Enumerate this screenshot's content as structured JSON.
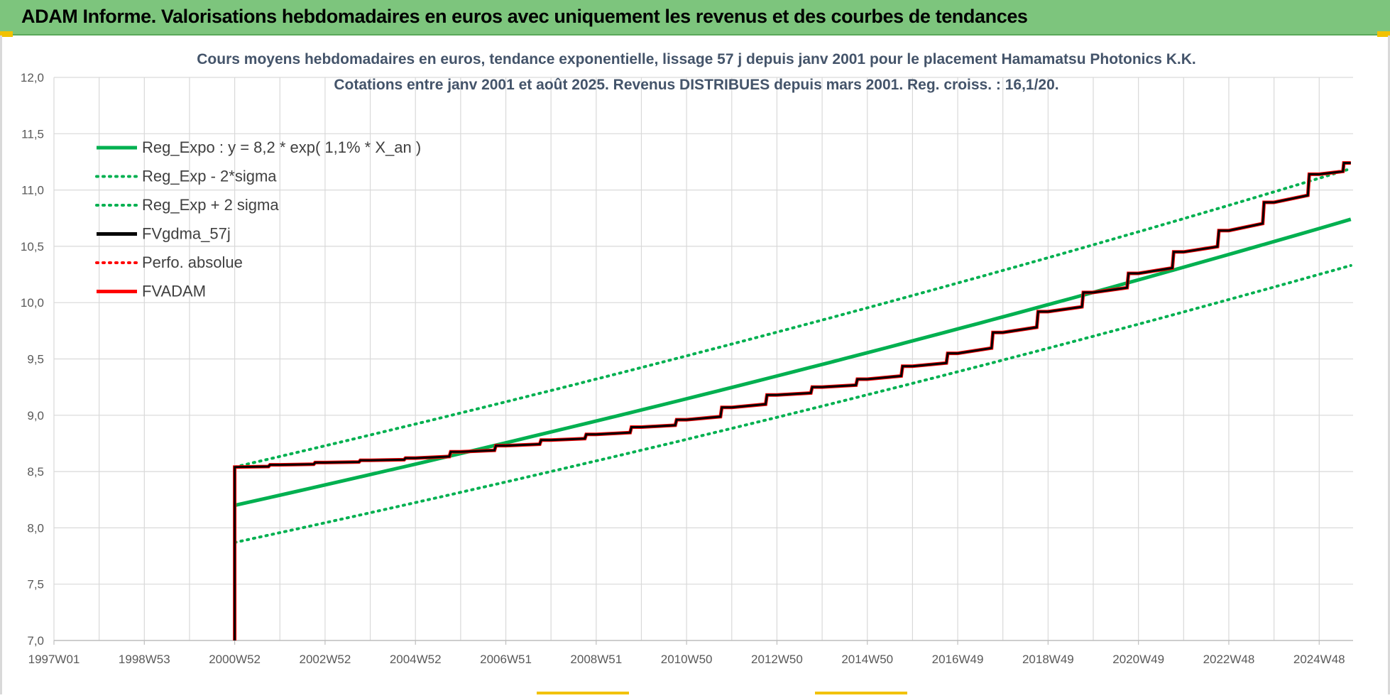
{
  "header": {
    "title": "ADAM Informe. Valorisations hebdomadaires en euros avec uniquement les revenus et des courbes de tendances"
  },
  "chart_data": {
    "type": "line",
    "title_line1": "Cours moyens hebdomadaires en euros, tendance exponentielle, lissage 57 j depuis janv 2001 pour le placement Hamamatsu Photonics K.K.",
    "title_line2": "Cotations entre janv 2001 et août 2025.  Revenus DISTRIBUES depuis mars 2001. Reg. croiss. : 16,1/20.",
    "xlabel": "",
    "ylabel": "",
    "ylim": [
      7.0,
      12.0
    ],
    "y_ticks": [
      "7,0",
      "7,5",
      "8,0",
      "8,5",
      "9,0",
      "9,5",
      "10,0",
      "10,5",
      "11,0",
      "11,5",
      "12,0"
    ],
    "x_ticks": [
      "1997W01",
      "1998W53",
      "2000W52",
      "2002W52",
      "2004W52",
      "2006W51",
      "2008W51",
      "2010W50",
      "2012W50",
      "2014W50",
      "2016W49",
      "2018W49",
      "2020W49",
      "2022W48",
      "2024W48"
    ],
    "x_tick_years": [
      1997.0,
      1999.0,
      2001.0,
      2003.0,
      2005.0,
      2007.0,
      2009.0,
      2011.0,
      2013.0,
      2015.0,
      2017.0,
      2019.0,
      2021.0,
      2023.0,
      2025.0
    ],
    "x_range_years": [
      1997.0,
      2025.75
    ],
    "grid": true,
    "legend_position": "top-left",
    "series": [
      {
        "name": "Reg_Expo : y = 8,2 * exp( 1,1% *  X_an )",
        "color": "#00b050",
        "style": "solid",
        "x": [
          2001.0,
          2025.7
        ],
        "y": [
          8.2,
          10.74
        ]
      },
      {
        "name": "Reg_Exp - 2*sigma",
        "color": "#00b050",
        "style": "dotted",
        "x": [
          2001.0,
          2025.7
        ],
        "y": [
          7.87,
          10.33
        ]
      },
      {
        "name": "Reg_Exp + 2 sigma",
        "color": "#00b050",
        "style": "dotted",
        "x": [
          2001.0,
          2025.7
        ],
        "y": [
          8.54,
          11.19
        ]
      },
      {
        "name": "FVgdma_57j",
        "color": "#000000",
        "style": "solid",
        "x": [
          2001.0,
          2001.0,
          2003.0,
          2005.0,
          2007.0,
          2009.0,
          2011.0,
          2013.0,
          2015.0,
          2017.0,
          2019.0,
          2021.0,
          2023.0,
          2025.0,
          2025.7
        ],
        "y": [
          7.0,
          8.54,
          8.58,
          8.62,
          8.73,
          8.83,
          8.96,
          9.18,
          9.32,
          9.55,
          9.92,
          10.26,
          10.64,
          11.14,
          11.24
        ]
      },
      {
        "name": "Perfo. absolue",
        "color": "#ff0000",
        "style": "dotted",
        "x": [],
        "y": []
      },
      {
        "name": "FVADAM",
        "color": "#ff0000",
        "style": "solid",
        "x": [
          2001.0,
          2001.0,
          2003.0,
          2005.0,
          2007.0,
          2009.0,
          2011.0,
          2013.0,
          2015.0,
          2017.0,
          2019.0,
          2021.0,
          2023.0,
          2025.0,
          2025.7
        ],
        "y": [
          7.0,
          8.54,
          8.58,
          8.62,
          8.73,
          8.83,
          8.96,
          9.18,
          9.32,
          9.55,
          9.92,
          10.26,
          10.64,
          11.14,
          11.24
        ]
      }
    ]
  }
}
